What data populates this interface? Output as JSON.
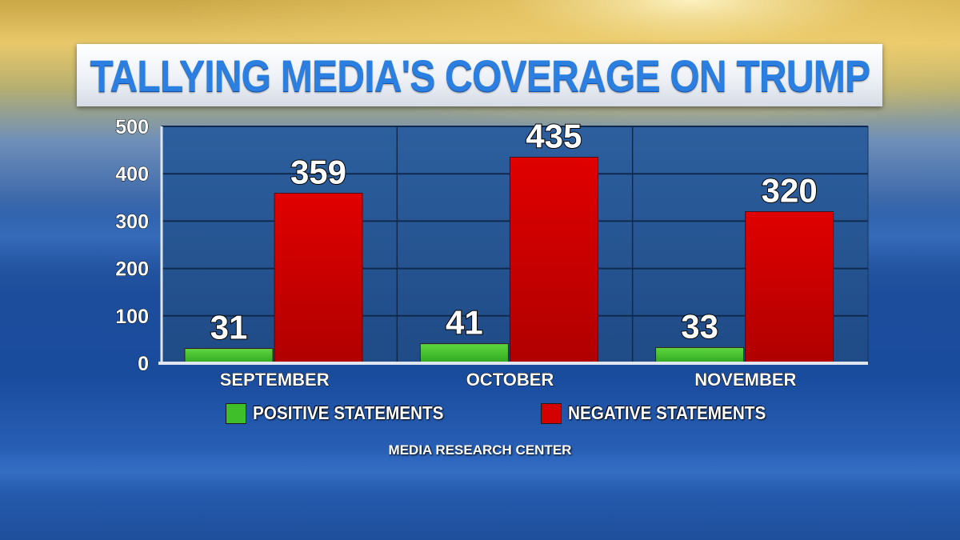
{
  "chart_data": {
    "type": "bar",
    "title": "TALLYING MEDIA'S COVERAGE ON TRUMP",
    "categories": [
      "SEPTEMBER",
      "OCTOBER",
      "NOVEMBER"
    ],
    "series": [
      {
        "name": "POSITIVE STATEMENTS",
        "values": [
          31,
          41,
          33
        ],
        "color": "#3fbf2a"
      },
      {
        "name": "NEGATIVE STATEMENTS",
        "values": [
          359,
          435,
          320
        ],
        "color": "#d40000"
      }
    ],
    "ylim": [
      0,
      500
    ],
    "yticks": [
      "0",
      "100",
      "200",
      "300",
      "400",
      "500"
    ],
    "grid": true,
    "legend": "bottom",
    "source": "MEDIA RESEARCH CENTER"
  }
}
